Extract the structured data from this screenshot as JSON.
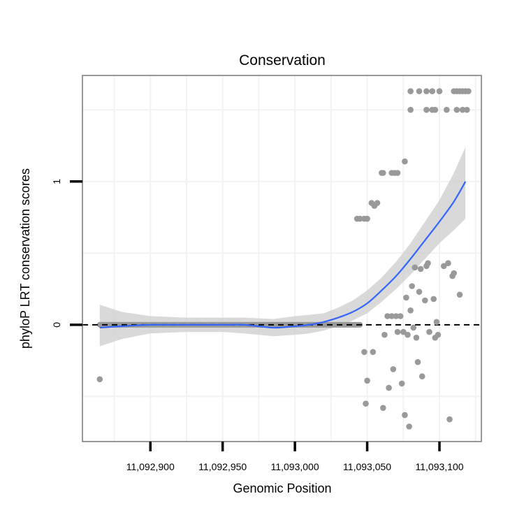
{
  "chart_data": {
    "type": "scatter",
    "title": "Conservation",
    "xlabel": "Genomic Position",
    "ylabel": "phyloP LRT conservation scores",
    "xlim": [
      11092853,
      11093129
    ],
    "ylim": [
      -0.815,
      1.74
    ],
    "x_ticks": [
      {
        "value": 11092900,
        "label": "11,092,900"
      },
      {
        "value": 11092950,
        "label": "11,092,950"
      },
      {
        "value": 11093000,
        "label": "11,093,000"
      },
      {
        "value": 11093050,
        "label": "11,093,050"
      },
      {
        "value": 11093100,
        "label": "11,093,100"
      }
    ],
    "y_ticks": [
      {
        "value": 0,
        "label": "0"
      },
      {
        "value": 1,
        "label": "1"
      }
    ],
    "grid": true,
    "reference_line": {
      "y": 0,
      "style": "dashed"
    },
    "zero_band": {
      "x_start": 11092865,
      "x_end": 11093045,
      "y": 0
    },
    "colors": {
      "points": "#999999",
      "smooth_line": "#3366FF",
      "ribbon": "#CCCCCC",
      "grid": "#F2F2F2",
      "frame": "#7F7F7F"
    },
    "points": [
      {
        "x": 11092865,
        "y": -0.38
      },
      {
        "x": 11093043,
        "y": 0.74
      },
      {
        "x": 11093045,
        "y": 0.74
      },
      {
        "x": 11093048,
        "y": 0.74
      },
      {
        "x": 11093050,
        "y": 0.74
      },
      {
        "x": 11093053,
        "y": 0.85
      },
      {
        "x": 11093055,
        "y": 0.83
      },
      {
        "x": 11093057,
        "y": 0.85
      },
      {
        "x": 11093060,
        "y": 1.06
      },
      {
        "x": 11093061,
        "y": 1.06
      },
      {
        "x": 11093067,
        "y": 1.06
      },
      {
        "x": 11093069,
        "y": 1.06
      },
      {
        "x": 11093071,
        "y": 1.06
      },
      {
        "x": 11093076,
        "y": 1.14
      },
      {
        "x": 11093080,
        "y": 1.63
      },
      {
        "x": 11093086,
        "y": 1.63
      },
      {
        "x": 11093091,
        "y": 1.63
      },
      {
        "x": 11093095,
        "y": 1.63
      },
      {
        "x": 11093100,
        "y": 1.63
      },
      {
        "x": 11093110,
        "y": 1.63
      },
      {
        "x": 11093112,
        "y": 1.63
      },
      {
        "x": 11093114,
        "y": 1.63
      },
      {
        "x": 11093116,
        "y": 1.63
      },
      {
        "x": 11093118,
        "y": 1.63
      },
      {
        "x": 11093120,
        "y": 1.63
      },
      {
        "x": 11093080,
        "y": 1.5
      },
      {
        "x": 11093091,
        "y": 1.5
      },
      {
        "x": 11093095,
        "y": 1.5
      },
      {
        "x": 11093097,
        "y": 1.5
      },
      {
        "x": 11093105,
        "y": 1.5
      },
      {
        "x": 11093112,
        "y": 1.5
      },
      {
        "x": 11093116,
        "y": 1.5
      },
      {
        "x": 11093119,
        "y": 1.5
      },
      {
        "x": 11093048,
        "y": -0.19
      },
      {
        "x": 11093054,
        "y": -0.19
      },
      {
        "x": 11093050,
        "y": -0.39
      },
      {
        "x": 11093049,
        "y": -0.55
      },
      {
        "x": 11093061,
        "y": -0.58
      },
      {
        "x": 11093062,
        "y": -0.07
      },
      {
        "x": 11093064,
        "y": 0.06
      },
      {
        "x": 11093065,
        "y": -0.44
      },
      {
        "x": 11093067,
        "y": 0.06
      },
      {
        "x": 11093068,
        "y": -0.31
      },
      {
        "x": 11093070,
        "y": 0.06
      },
      {
        "x": 11093071,
        "y": -0.05
      },
      {
        "x": 11093073,
        "y": 0.06
      },
      {
        "x": 11093074,
        "y": -0.41
      },
      {
        "x": 11093075,
        "y": -0.05
      },
      {
        "x": 11093076,
        "y": -0.63
      },
      {
        "x": 11093077,
        "y": 0.19
      },
      {
        "x": 11093078,
        "y": -0.07
      },
      {
        "x": 11093079,
        "y": -0.71
      },
      {
        "x": 11093080,
        "y": 0.1
      },
      {
        "x": 11093081,
        "y": 0.27
      },
      {
        "x": 11093082,
        "y": -0.02
      },
      {
        "x": 11093083,
        "y": 0.4
      },
      {
        "x": 11093084,
        "y": -0.09
      },
      {
        "x": 11093085,
        "y": -0.26
      },
      {
        "x": 11093086,
        "y": 0.23
      },
      {
        "x": 11093087,
        "y": 0.39
      },
      {
        "x": 11093088,
        "y": -0.36
      },
      {
        "x": 11093090,
        "y": 0.17
      },
      {
        "x": 11093091,
        "y": 0.41
      },
      {
        "x": 11093092,
        "y": 0.43
      },
      {
        "x": 11093093,
        "y": -0.05
      },
      {
        "x": 11093096,
        "y": 0.18
      },
      {
        "x": 11093097,
        "y": -0.09
      },
      {
        "x": 11093098,
        "y": 0.02
      },
      {
        "x": 11093099,
        "y": -0.07
      },
      {
        "x": 11093103,
        "y": 0.41
      },
      {
        "x": 11093106,
        "y": 0.43
      },
      {
        "x": 11093107,
        "y": -0.66
      },
      {
        "x": 11093109,
        "y": 0.34
      },
      {
        "x": 11093110,
        "y": 0.36
      },
      {
        "x": 11093114,
        "y": 0.21
      }
    ],
    "smooth_fit": [
      {
        "x": 11092865,
        "y": -0.02,
        "lo": -0.15,
        "hi": 0.14
      },
      {
        "x": 11092880,
        "y": -0.01,
        "lo": -0.1,
        "hi": 0.09
      },
      {
        "x": 11092900,
        "y": 0.0,
        "lo": -0.06,
        "hi": 0.06
      },
      {
        "x": 11092925,
        "y": 0.0,
        "lo": -0.05,
        "hi": 0.05
      },
      {
        "x": 11092950,
        "y": 0.0,
        "lo": -0.05,
        "hi": 0.05
      },
      {
        "x": 11092965,
        "y": 0.0,
        "lo": -0.06,
        "hi": 0.05
      },
      {
        "x": 11092985,
        "y": -0.02,
        "lo": -0.08,
        "hi": 0.04
      },
      {
        "x": 11093000,
        "y": -0.01,
        "lo": -0.07,
        "hi": 0.06
      },
      {
        "x": 11093010,
        "y": 0.0,
        "lo": -0.06,
        "hi": 0.07
      },
      {
        "x": 11093020,
        "y": 0.02,
        "lo": -0.04,
        "hi": 0.08
      },
      {
        "x": 11093030,
        "y": 0.05,
        "lo": -0.01,
        "hi": 0.12
      },
      {
        "x": 11093040,
        "y": 0.09,
        "lo": 0.03,
        "hi": 0.17
      },
      {
        "x": 11093050,
        "y": 0.15,
        "lo": 0.08,
        "hi": 0.24
      },
      {
        "x": 11093060,
        "y": 0.24,
        "lo": 0.16,
        "hi": 0.33
      },
      {
        "x": 11093070,
        "y": 0.34,
        "lo": 0.25,
        "hi": 0.44
      },
      {
        "x": 11093080,
        "y": 0.46,
        "lo": 0.35,
        "hi": 0.57
      },
      {
        "x": 11093090,
        "y": 0.59,
        "lo": 0.46,
        "hi": 0.72
      },
      {
        "x": 11093100,
        "y": 0.72,
        "lo": 0.57,
        "hi": 0.87
      },
      {
        "x": 11093110,
        "y": 0.86,
        "lo": 0.66,
        "hi": 1.06
      },
      {
        "x": 11093118,
        "y": 1.0,
        "lo": 0.74,
        "hi": 1.24
      }
    ]
  }
}
